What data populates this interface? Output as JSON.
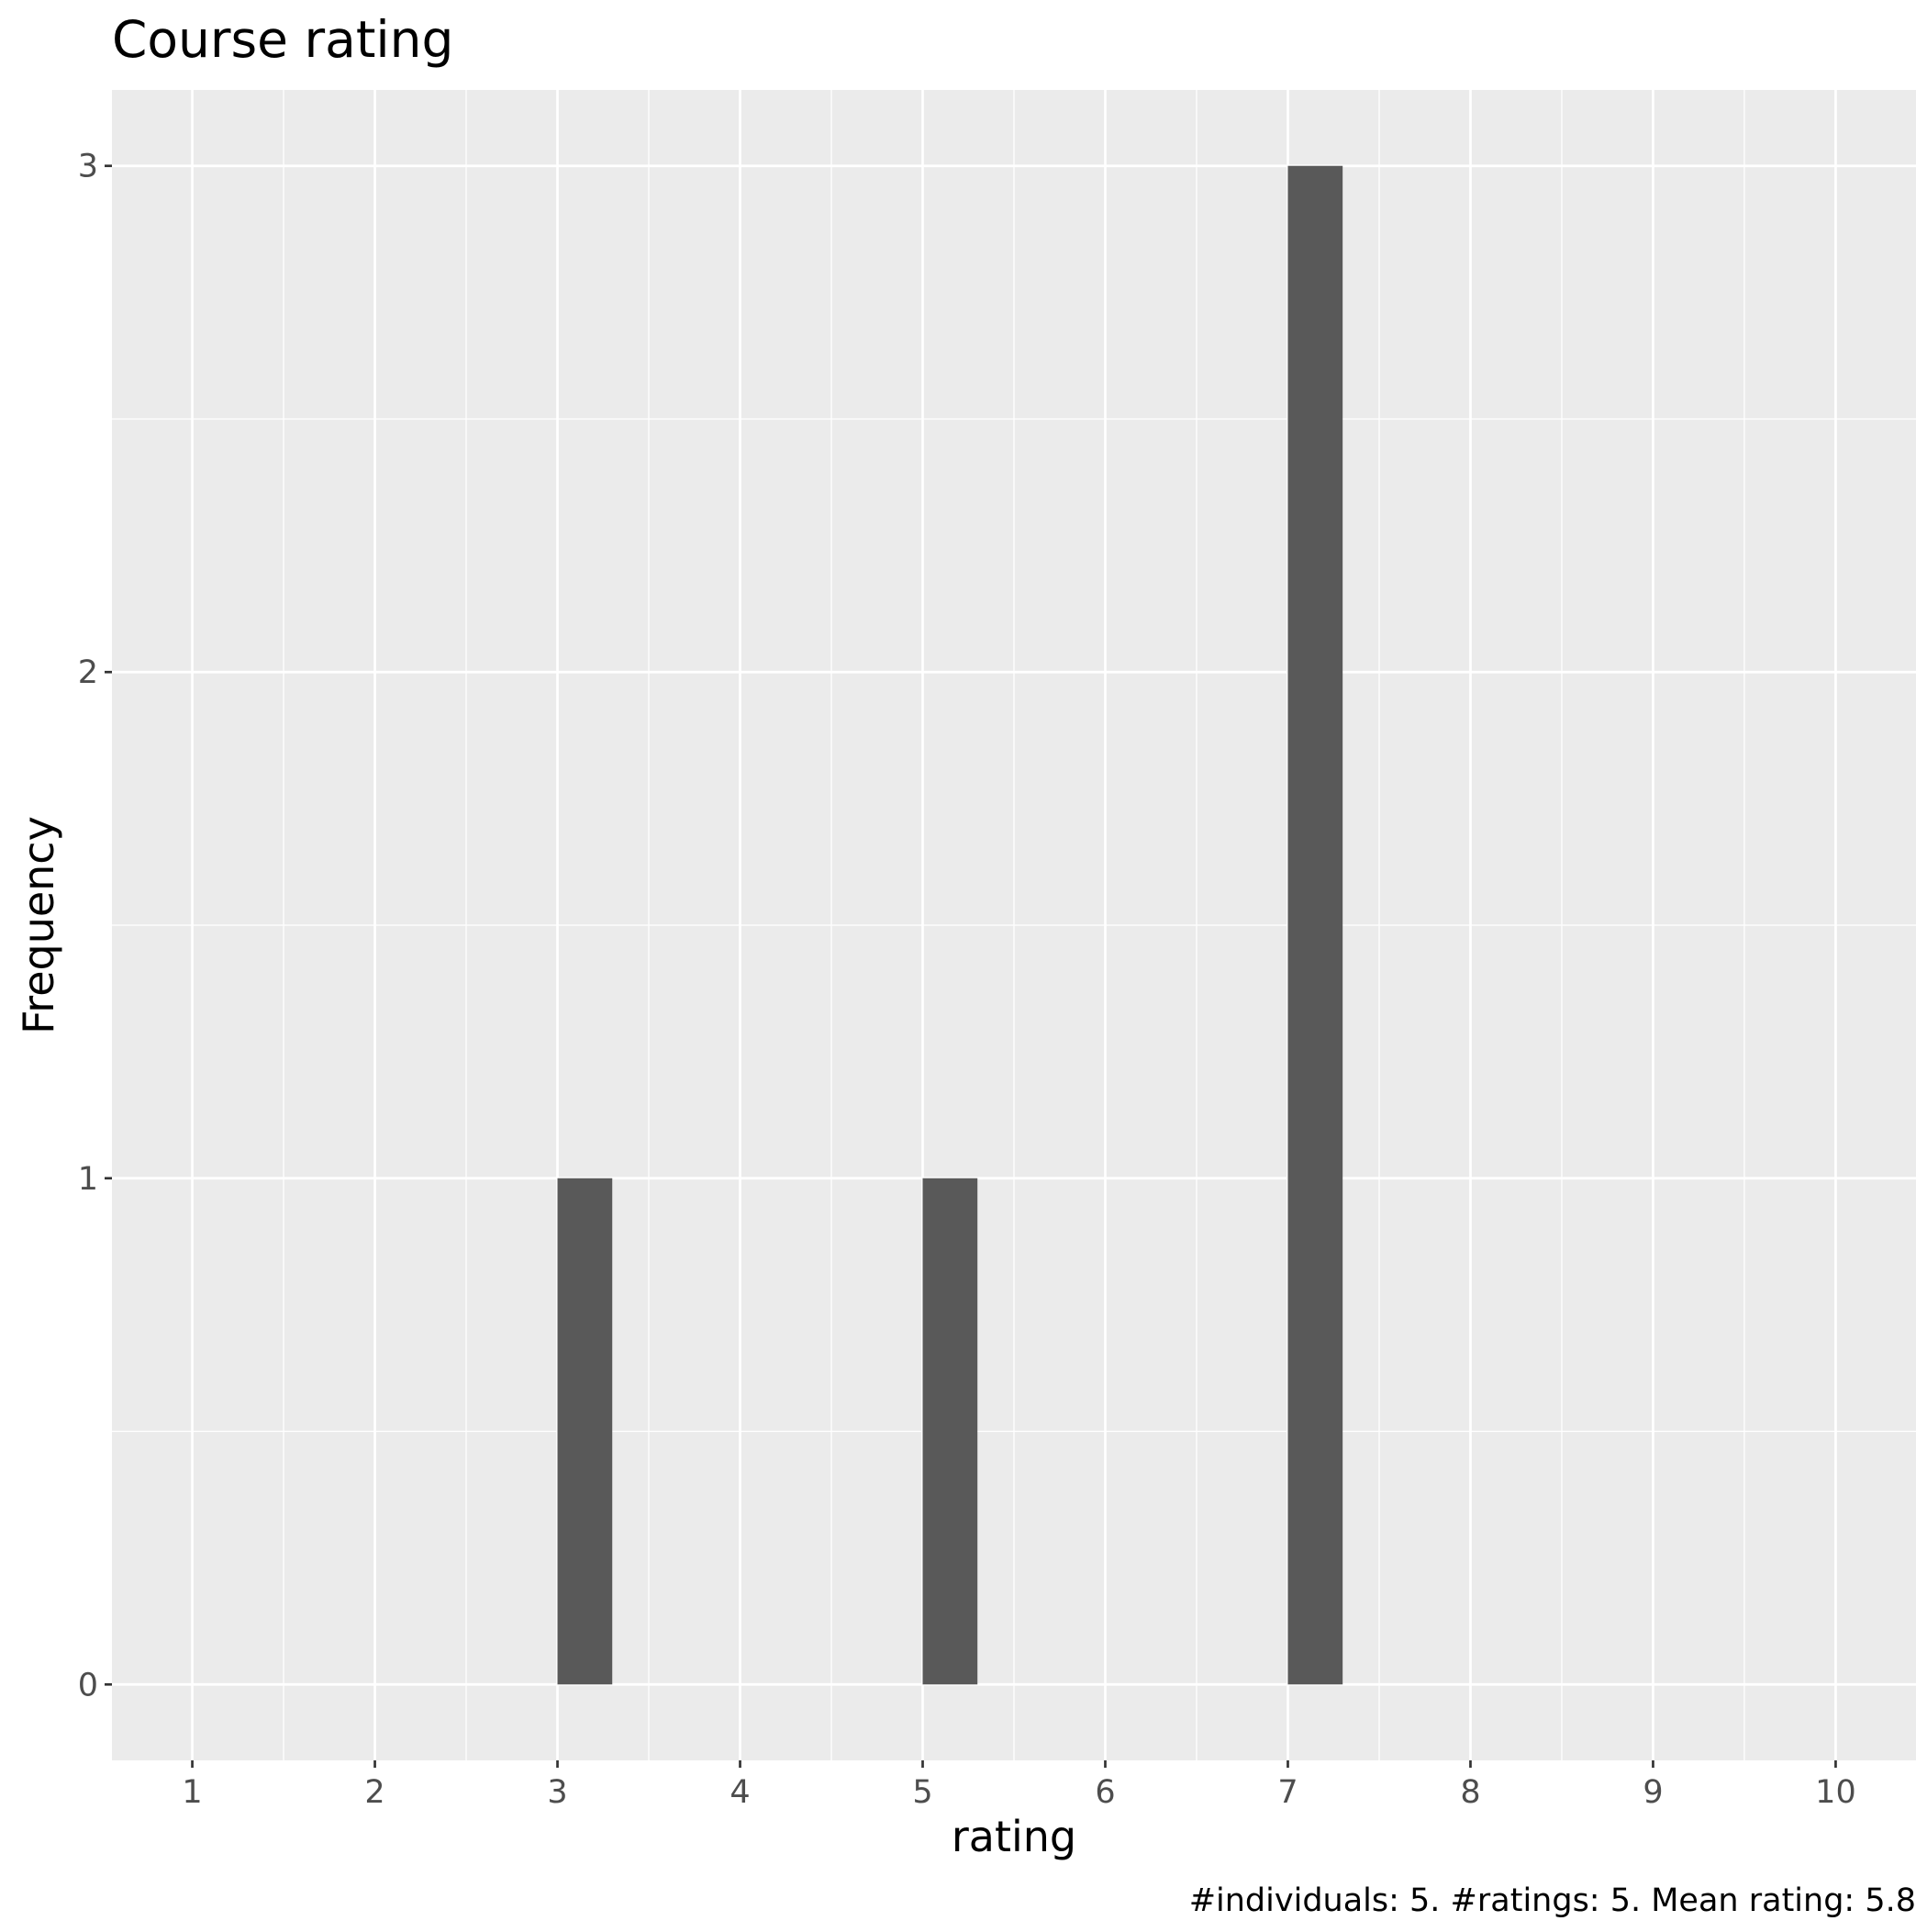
{
  "chart_data": {
    "type": "bar",
    "title": "Course rating",
    "xlabel": "rating",
    "ylabel": "Frequency",
    "caption": "#individuals: 5. #ratings: 5. Mean rating: 5.8",
    "x_ticks": [
      "1",
      "2",
      "3",
      "4",
      "5",
      "6",
      "7",
      "8",
      "9",
      "10"
    ],
    "y_ticks": [
      "0",
      "1",
      "2",
      "3"
    ],
    "xlim": [
      0.56,
      10.44
    ],
    "ylim": [
      -0.15,
      3.15
    ],
    "bars": [
      {
        "rating": 3,
        "frequency": 1
      },
      {
        "rating": 5,
        "frequency": 1
      },
      {
        "rating": 7,
        "frequency": 3
      }
    ],
    "bar_width": 0.3,
    "grid": true,
    "colors": {
      "panel_background": "#ebebeb",
      "grid": "#ffffff",
      "bar_fill": "#595959",
      "tick_text": "#4d4d4d"
    }
  }
}
